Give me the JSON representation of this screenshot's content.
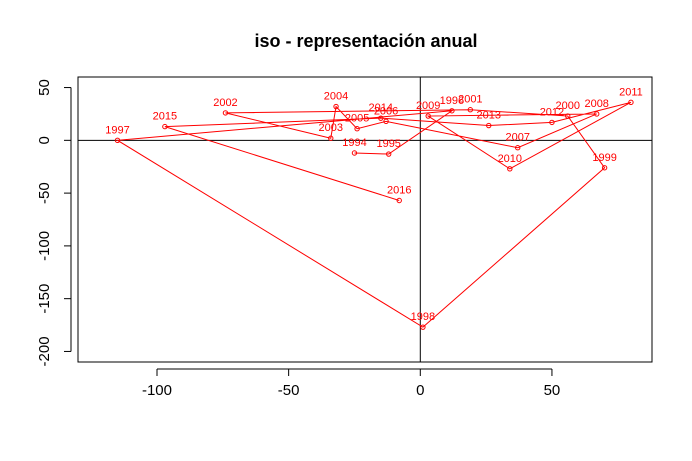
{
  "chart_data": {
    "type": "line",
    "title": "iso - representación anual",
    "xlabel": "",
    "ylabel": "",
    "xlim": [
      -130,
      88
    ],
    "ylim": [
      -210,
      60
    ],
    "xticks": [
      -100,
      -50,
      0,
      50
    ],
    "yticks": [
      -200,
      -150,
      -100,
      -50,
      0,
      50
    ],
    "xtick_labels": [
      "-100",
      "-50",
      "0",
      "50"
    ],
    "ytick_labels": [
      "-200",
      "-150",
      "-100",
      "-50",
      "0",
      "50"
    ],
    "reference_lines": {
      "x": 0,
      "y": 0
    },
    "grid": false,
    "legend": "none",
    "series_color": "#ff0000",
    "points": [
      {
        "label": "1994",
        "x": -25,
        "y": -12
      },
      {
        "label": "1995",
        "x": -12,
        "y": -13
      },
      {
        "label": "1996",
        "x": 12,
        "y": 28
      },
      {
        "label": "1997",
        "x": -115,
        "y": 0
      },
      {
        "label": "1998",
        "x": 1,
        "y": -177
      },
      {
        "label": "1999",
        "x": 70,
        "y": -26
      },
      {
        "label": "2000",
        "x": 56,
        "y": 23
      },
      {
        "label": "2001",
        "x": 19,
        "y": 29
      },
      {
        "label": "2002",
        "x": -74,
        "y": 26
      },
      {
        "label": "2003",
        "x": -34,
        "y": 2
      },
      {
        "label": "2004",
        "x": -32,
        "y": 32
      },
      {
        "label": "2005",
        "x": -24,
        "y": 11
      },
      {
        "label": "2006",
        "x": -13,
        "y": 18
      },
      {
        "label": "2007",
        "x": 37,
        "y": -7
      },
      {
        "label": "2008",
        "x": 67,
        "y": 25
      },
      {
        "label": "2009",
        "x": 3,
        "y": 23
      },
      {
        "label": "2010",
        "x": 34,
        "y": -27
      },
      {
        "label": "2011",
        "x": 80,
        "y": 36
      },
      {
        "label": "2012",
        "x": 50,
        "y": 17
      },
      {
        "label": "2013",
        "x": 26,
        "y": 14
      },
      {
        "label": "2014",
        "x": -15,
        "y": 21
      },
      {
        "label": "2015",
        "x": -97,
        "y": 13
      },
      {
        "label": "2016",
        "x": -8,
        "y": -57
      }
    ]
  }
}
